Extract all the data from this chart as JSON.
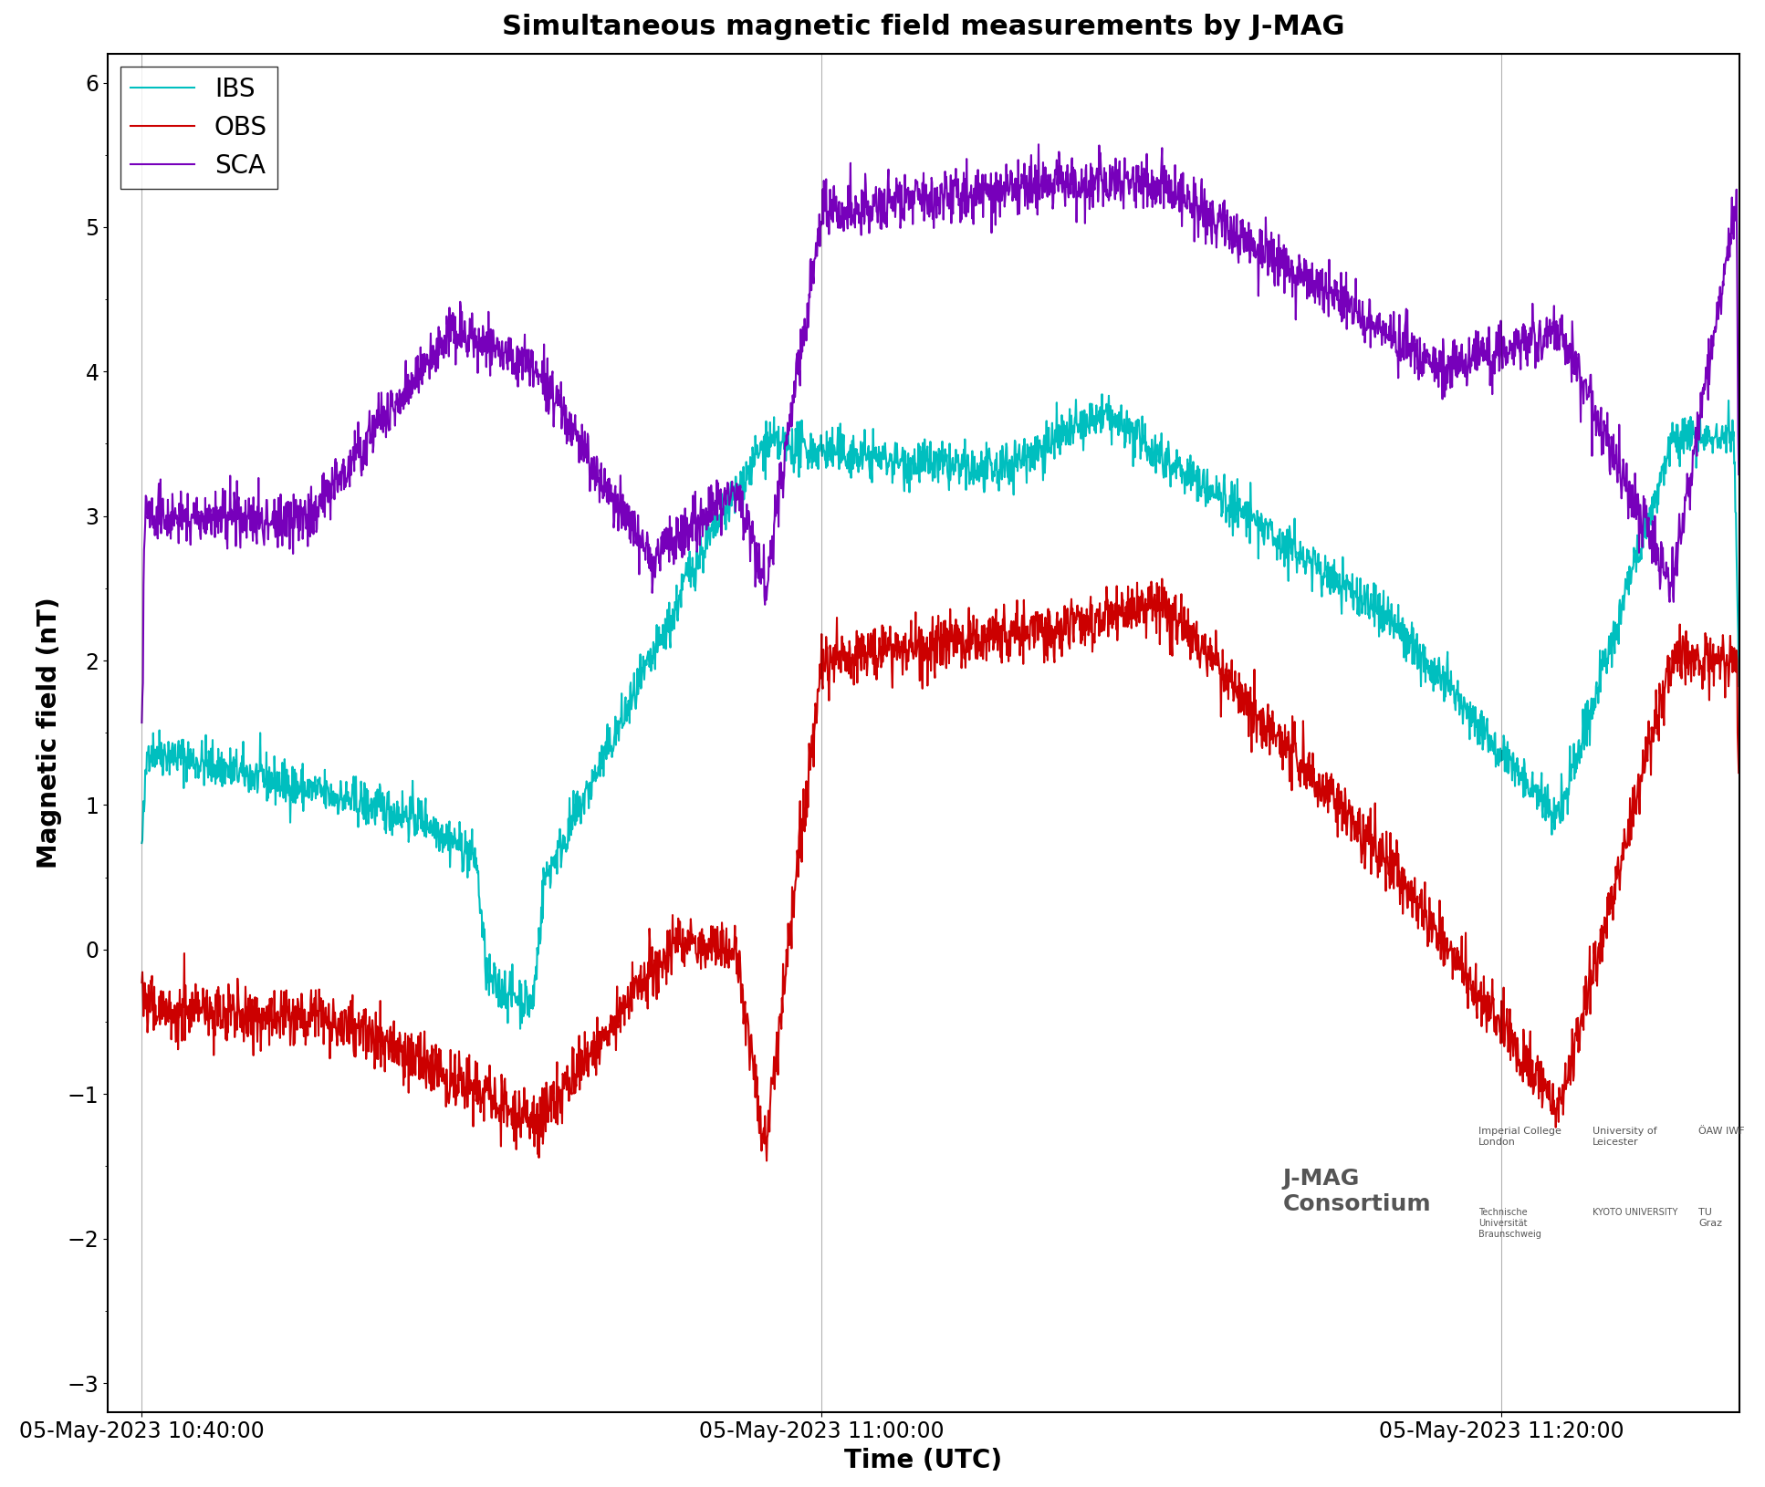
{
  "title": "Simultaneous magnetic field measurements by J-MAG",
  "xlabel": "Time (UTC)",
  "ylabel": "Magnetic field (nT)",
  "ylim": [
    -3.2,
    6.2
  ],
  "yticks": [
    -3,
    -2,
    -1,
    0,
    1,
    2,
    3,
    4,
    5,
    6
  ],
  "xtick_labels": [
    "05-May-2023 10:40:00",
    "05-May-2023 11:00:00",
    "05-May-2023 11:20:00"
  ],
  "xtick_positions": [
    0,
    1200,
    2400
  ],
  "xlim": [
    -60,
    2820
  ],
  "ibs_color": "#00BFBF",
  "obs_color": "#CC0000",
  "sca_color": "#7700BB",
  "title_fontsize": 22,
  "axis_label_fontsize": 20,
  "tick_fontsize": 17,
  "legend_fontsize": 20,
  "line_width": 1.5
}
